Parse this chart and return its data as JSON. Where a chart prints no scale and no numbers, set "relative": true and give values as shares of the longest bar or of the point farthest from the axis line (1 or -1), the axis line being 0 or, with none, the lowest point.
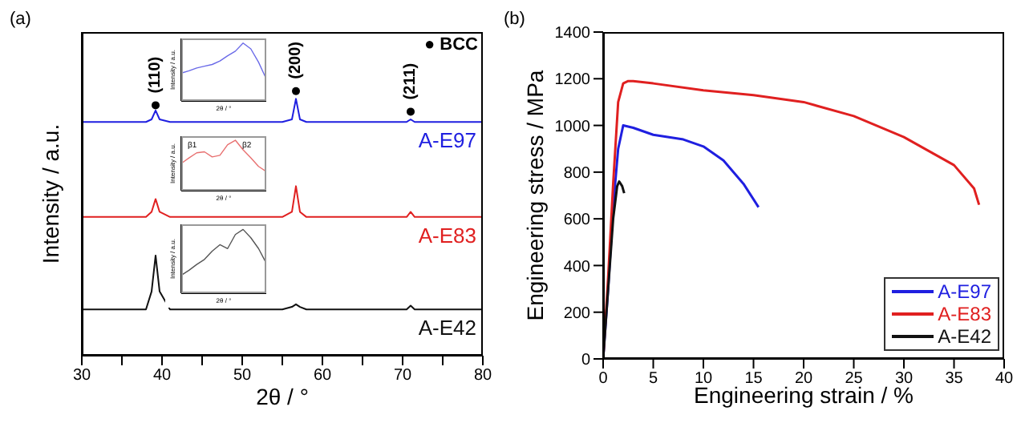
{
  "chart_data": [
    {
      "type": "line",
      "relative": true,
      "xlabel": "2θ / °",
      "ylabel": "Intensity / a.u.",
      "tick_labels": "x",
      "xlim": [
        30,
        80
      ],
      "xticks": [
        30,
        {
          "value": 35,
          "label": null
        },
        40,
        {
          "value": 45,
          "label": null
        },
        50,
        {
          "value": 55,
          "label": null
        },
        60,
        {
          "value": 65,
          "label": null
        },
        70,
        {
          "value": 75,
          "label": null
        },
        80
      ],
      "x": [
        30,
        38,
        38.7,
        39.2,
        39.7,
        41,
        55,
        56.2,
        56.7,
        57.2,
        58,
        70.5,
        71,
        71.5,
        80
      ],
      "series": [
        {
          "name": "A-E97",
          "color": "#1f1fe0",
          "values": [
            0.91,
            0.91,
            0.92,
            0.955,
            0.92,
            0.91,
            0.91,
            0.92,
            1,
            0.92,
            0.91,
            0.91,
            0.92,
            0.91,
            0.91
          ]
        },
        {
          "name": "A-E83",
          "color": "#e02020",
          "values": [
            0.54,
            0.54,
            0.56,
            0.61,
            0.56,
            0.54,
            0.54,
            0.56,
            0.66,
            0.56,
            0.54,
            0.54,
            0.56,
            0.54,
            0.54
          ]
        },
        {
          "name": "A-E42",
          "color": "#111111",
          "values": [
            0.18,
            0.18,
            0.25,
            0.39,
            0.25,
            0.18,
            0.18,
            0.19,
            0.2,
            0.19,
            0.18,
            0.18,
            0.195,
            0.18,
            0.18
          ]
        }
      ],
      "annotations": [
        {
          "text": "(110)",
          "x": 39.2,
          "y": 0.975
        },
        {
          "text": "(200)",
          "x": 56.7,
          "y": 1.03
        },
        {
          "text": "(211)",
          "x": 71,
          "y": 0.95
        },
        "● BCC",
        "(a)"
      ]
    },
    {
      "type": "line",
      "relative": true,
      "xlabel": "2θ / °",
      "ylabel": "Intensity / a.u.",
      "tick_labels": false,
      "categories": [
        null,
        null,
        null,
        null,
        null,
        null,
        null,
        null,
        null,
        null,
        null,
        null
      ],
      "series": [
        {
          "color": "#6a6ae8",
          "values": [
            0.48,
            0.52,
            0.57,
            0.6,
            0.63,
            0.69,
            0.78,
            0.86,
            1,
            0.9,
            0.67,
            0.38
          ]
        }
      ]
    },
    {
      "type": "line",
      "relative": true,
      "xlabel": "2θ / °",
      "ylabel": "Intensity / a.u.",
      "tick_labels": false,
      "categories": [
        null,
        null,
        null,
        null,
        null,
        null,
        null,
        null,
        null,
        null,
        null,
        null
      ],
      "series": [
        {
          "color": "#e87070",
          "values": [
            0.54,
            0.65,
            0.75,
            0.77,
            0.67,
            0.7,
            0.91,
            1,
            0.81,
            0.65,
            0.48,
            0.38
          ]
        }
      ],
      "annotations": [
        "β1",
        "β2"
      ]
    },
    {
      "type": "line",
      "relative": true,
      "xlabel": "2θ / °",
      "ylabel": "Intensity / a.u.",
      "tick_labels": false,
      "categories": [
        null,
        null,
        null,
        null,
        null,
        null,
        null,
        null,
        null,
        null,
        null,
        null
      ],
      "series": [
        {
          "color": "#555555",
          "values": [
            0.28,
            0.36,
            0.45,
            0.53,
            0.66,
            0.76,
            0.7,
            0.92,
            1,
            0.87,
            0.7,
            0.47
          ]
        }
      ]
    },
    {
      "type": "line",
      "xlabel": "Engineering strain / %",
      "ylabel": "Engineering stress / MPa",
      "xlim": [
        0,
        40
      ],
      "xticks": [
        0,
        5,
        10,
        15,
        20,
        25,
        30,
        35,
        40
      ],
      "ylim": [
        0,
        1400
      ],
      "yticks": [
        0,
        200,
        400,
        600,
        800,
        1000,
        1200,
        1400
      ],
      "legend": "bottom right",
      "series": [
        {
          "name": "A-E97",
          "color": "#1f1fe0",
          "x": [
            0,
            0.5,
            1,
            1.5,
            2,
            3,
            5,
            8,
            10,
            12,
            14,
            15.5
          ],
          "values": [
            0,
            300,
            650,
            900,
            1000,
            990,
            960,
            940,
            910,
            850,
            750,
            650
          ]
        },
        {
          "name": "A-E83",
          "color": "#e02020",
          "x": [
            0,
            0.5,
            1,
            1.5,
            2,
            2.5,
            3,
            5,
            10,
            15,
            20,
            25,
            30,
            35,
            37,
            37.5
          ],
          "values": [
            0,
            350,
            750,
            1100,
            1180,
            1190,
            1190,
            1180,
            1150,
            1130,
            1100,
            1040,
            950,
            830,
            730,
            660
          ]
        },
        {
          "name": "A-E42",
          "color": "#111111",
          "x": [
            0,
            0.5,
            1,
            1.4,
            1.6,
            1.9,
            2.1
          ],
          "values": [
            0,
            300,
            600,
            740,
            760,
            740,
            710
          ]
        }
      ],
      "annotations": [
        "(b)"
      ]
    }
  ]
}
